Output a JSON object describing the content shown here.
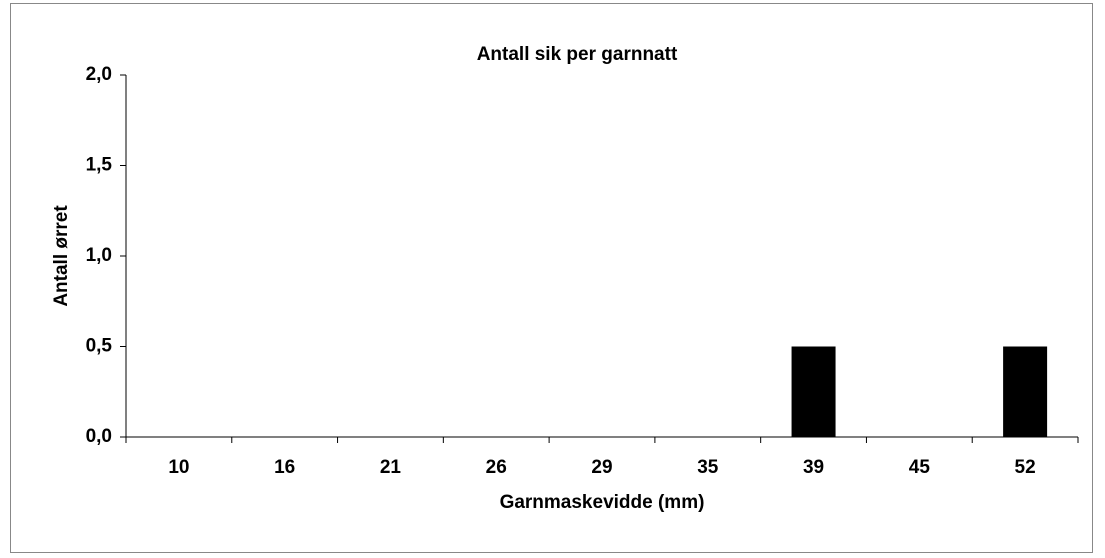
{
  "chart_data": {
    "type": "bar",
    "title": "Antall sik per garnnatt",
    "x_label": "Garnmaskevidde (mm)",
    "y_label": "Antall ørret",
    "categories": [
      "10",
      "16",
      "21",
      "26",
      "29",
      "35",
      "39",
      "45",
      "52"
    ],
    "values": [
      0,
      0,
      0,
      0,
      0,
      0,
      0.5,
      0,
      0.5
    ],
    "color": "#000000",
    "ylim": [
      0,
      2
    ],
    "yticks": [
      {
        "value": 0,
        "label": "0,0"
      },
      {
        "value": 0.5,
        "label": "0,5"
      },
      {
        "value": 1,
        "label": "1,0"
      },
      {
        "value": 1.5,
        "label": "1,5"
      },
      {
        "value": 2,
        "label": "2,0"
      }
    ],
    "grid": false
  }
}
